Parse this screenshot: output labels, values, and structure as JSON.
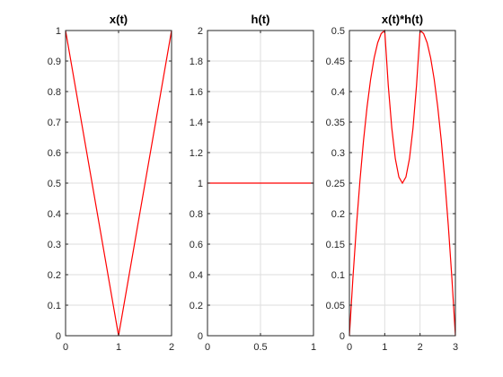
{
  "chart_data": [
    {
      "type": "line",
      "title": "x(t)",
      "xlabel": "",
      "ylabel": "",
      "xlim": [
        0,
        2
      ],
      "ylim": [
        0,
        1
      ],
      "xticks": [
        0,
        1,
        2
      ],
      "yticks": [
        0,
        0.1,
        0.2,
        0.3,
        0.4,
        0.5,
        0.6,
        0.7,
        0.8,
        0.9,
        1
      ],
      "grid": true,
      "series": [
        {
          "color": "#ff0000",
          "x": [
            0,
            1,
            2
          ],
          "y": [
            1,
            0,
            1
          ]
        }
      ]
    },
    {
      "type": "line",
      "title": "h(t)",
      "xlabel": "",
      "ylabel": "",
      "xlim": [
        0,
        1
      ],
      "ylim": [
        0,
        2
      ],
      "xticks": [
        0,
        0.5,
        1
      ],
      "yticks": [
        0,
        0.2,
        0.4,
        0.6,
        0.8,
        1,
        1.2,
        1.4,
        1.6,
        1.8,
        2
      ],
      "grid": true,
      "series": [
        {
          "color": "#ff0000",
          "x": [
            0,
            1
          ],
          "y": [
            1,
            1
          ]
        }
      ]
    },
    {
      "type": "line",
      "title": "x(t)*h(t)",
      "xlabel": "",
      "ylabel": "",
      "xlim": [
        0,
        3
      ],
      "ylim": [
        0,
        0.5
      ],
      "xticks": [
        0,
        1,
        2,
        3
      ],
      "yticks": [
        0,
        0.05,
        0.1,
        0.15,
        0.2,
        0.25,
        0.3,
        0.35,
        0.4,
        0.45,
        0.5
      ],
      "grid": true,
      "series": [
        {
          "color": "#ff0000",
          "x": [
            0,
            0.1,
            0.2,
            0.3,
            0.4,
            0.5,
            0.6,
            0.7,
            0.8,
            0.9,
            1,
            1.1,
            1.2,
            1.3,
            1.4,
            1.5,
            1.6,
            1.7,
            1.8,
            1.9,
            2,
            2.1,
            2.2,
            2.3,
            2.4,
            2.5,
            2.6,
            2.7,
            2.8,
            2.9,
            3
          ],
          "y": [
            0,
            0.095,
            0.18,
            0.255,
            0.32,
            0.375,
            0.42,
            0.455,
            0.48,
            0.495,
            0.5,
            0.41,
            0.34,
            0.29,
            0.26,
            0.25,
            0.26,
            0.29,
            0.34,
            0.41,
            0.5,
            0.495,
            0.48,
            0.455,
            0.42,
            0.375,
            0.32,
            0.255,
            0.18,
            0.095,
            0
          ]
        }
      ]
    }
  ]
}
